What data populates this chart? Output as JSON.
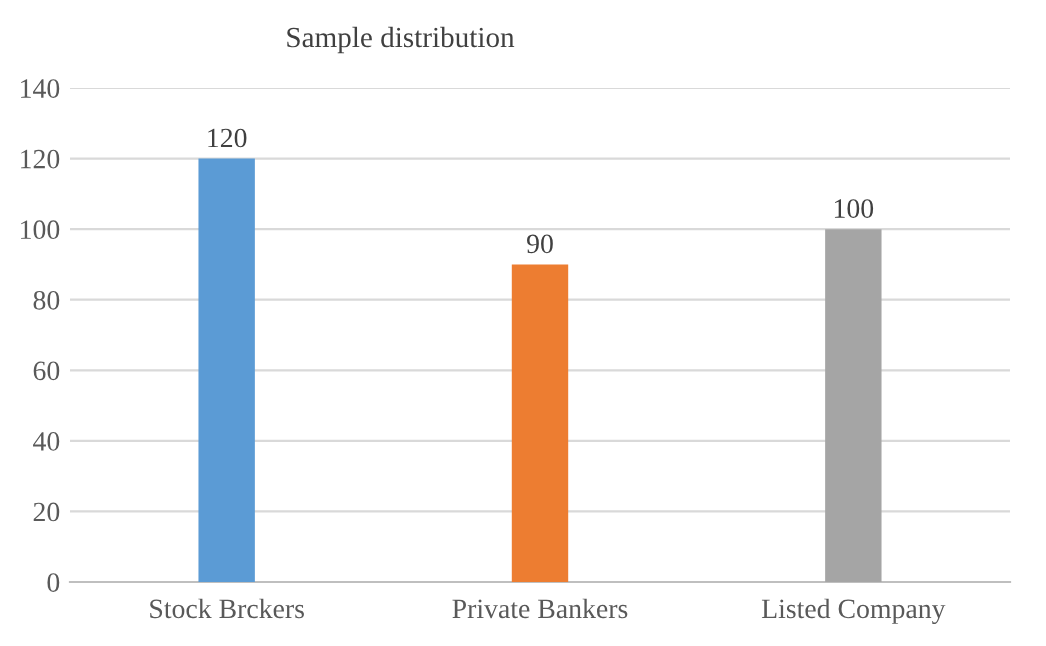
{
  "chart_data": {
    "type": "bar",
    "title": "Sample distribution",
    "categories": [
      "Stock Brckers",
      "Private Bankers",
      "Listed Company"
    ],
    "values": [
      120,
      90,
      100
    ],
    "colors": [
      "#5b9bd5",
      "#ed7d31",
      "#a5a5a5"
    ],
    "ylim": [
      0,
      140
    ],
    "yticks": [
      0,
      20,
      40,
      60,
      80,
      100,
      120,
      140
    ],
    "grid": "y",
    "data_labels": true,
    "legend": false
  }
}
